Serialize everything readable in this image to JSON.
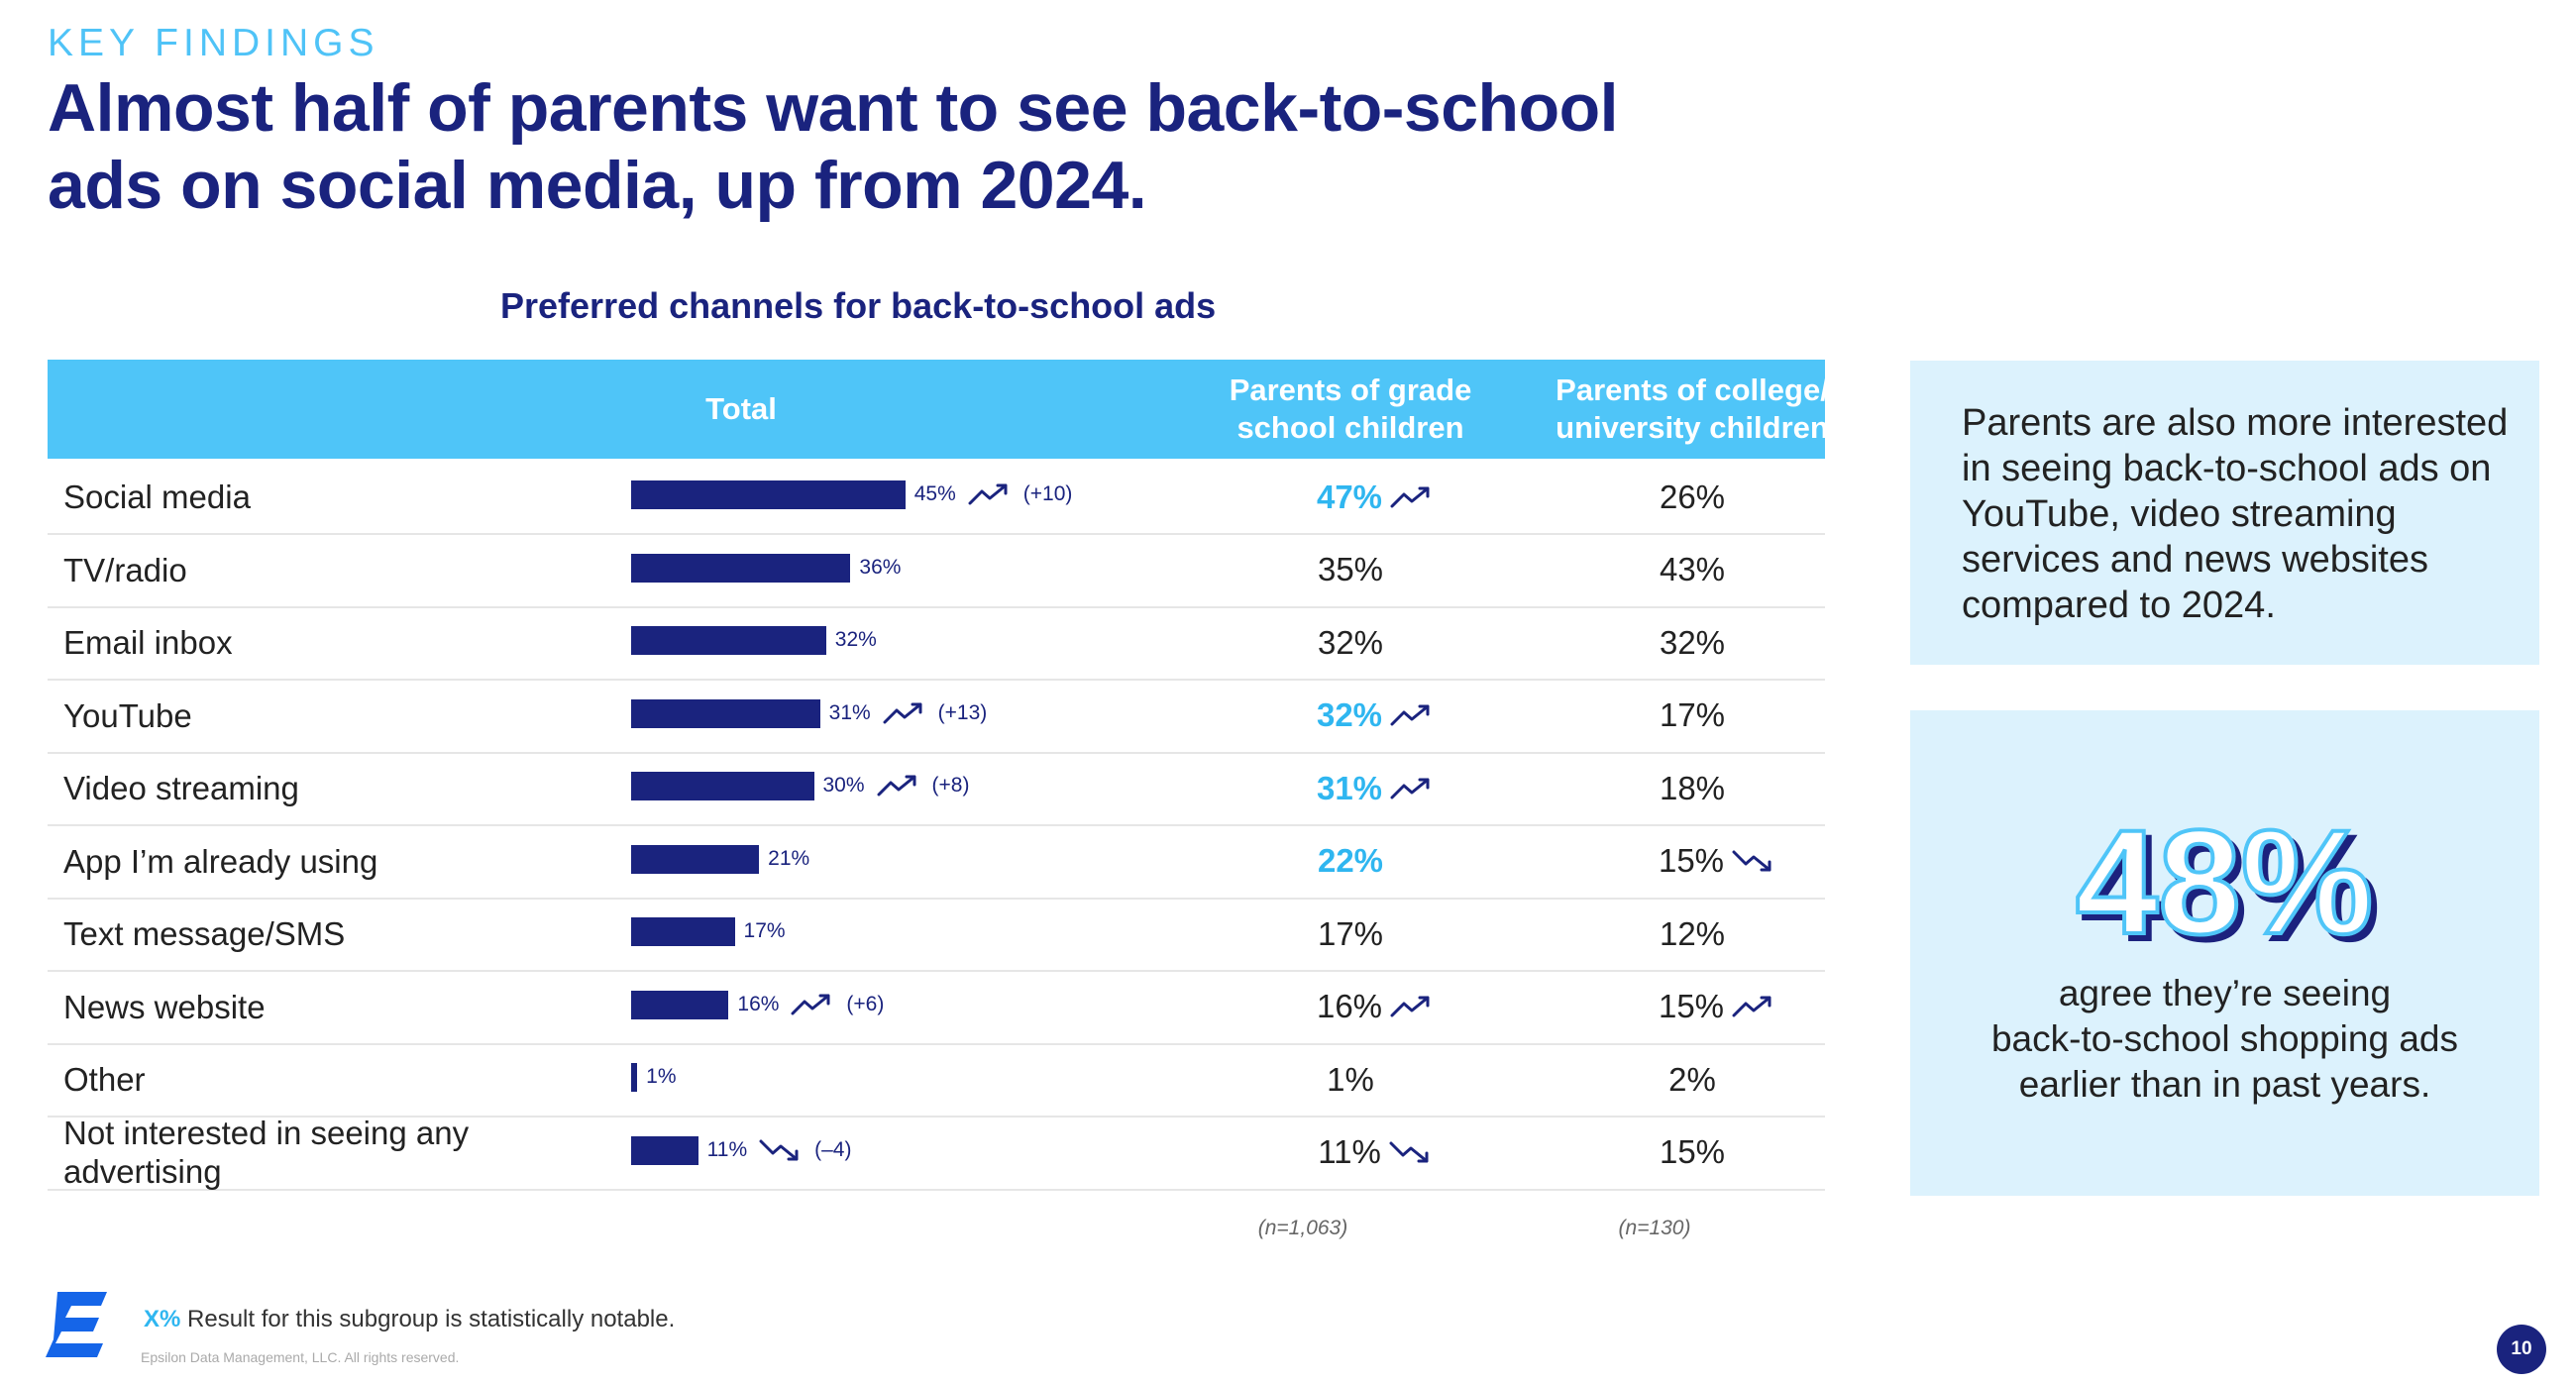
{
  "header": {
    "kicker": "KEY FINDINGS",
    "headline_line1": "Almost half of parents want to see back-to-school",
    "headline_line2": "ads on social media, up from 2024."
  },
  "colors": {
    "navy": "#1a237e",
    "header_blue": "#4fc5f8",
    "notable_blue": "#2fb6f0",
    "panel_bg": "#dcf2fd"
  },
  "chart_data": {
    "type": "bar",
    "orientation": "horizontal",
    "title": "Preferred channels for back-to-school ads",
    "columns": [
      "Total",
      "Parents of grade school children",
      "Parents of college/ university children"
    ],
    "column_header_lines": {
      "total": "Total",
      "grade_1": "Parents of grade",
      "grade_2": "school children",
      "college_1": "Parents of college/",
      "college_2": "university children"
    },
    "xlim": [
      0,
      100
    ],
    "categories": [
      "Social media",
      "TV/radio",
      "Email inbox",
      "YouTube",
      "Video streaming",
      "App I’m already using",
      "Text message/SMS",
      "News website",
      "Other",
      "Not interested in seeing any advertising"
    ],
    "rows": [
      {
        "label": "Social media",
        "total": 45,
        "total_text": "45%",
        "total_trend": "up",
        "total_change": "(+10)",
        "grade_text": "47%",
        "grade_notable": true,
        "grade_trend": "up",
        "college_text": "26%",
        "college_trend": ""
      },
      {
        "label": "TV/radio",
        "total": 36,
        "total_text": "36%",
        "total_trend": "",
        "total_change": "",
        "grade_text": "35%",
        "grade_notable": false,
        "grade_trend": "",
        "college_text": "43%",
        "college_trend": ""
      },
      {
        "label": "Email inbox",
        "total": 32,
        "total_text": "32%",
        "total_trend": "",
        "total_change": "",
        "grade_text": "32%",
        "grade_notable": false,
        "grade_trend": "",
        "college_text": "32%",
        "college_trend": ""
      },
      {
        "label": "YouTube",
        "total": 31,
        "total_text": "31%",
        "total_trend": "up",
        "total_change": "(+13)",
        "grade_text": "32%",
        "grade_notable": true,
        "grade_trend": "up",
        "college_text": "17%",
        "college_trend": ""
      },
      {
        "label": "Video streaming",
        "total": 30,
        "total_text": "30%",
        "total_trend": "up",
        "total_change": "(+8)",
        "grade_text": "31%",
        "grade_notable": true,
        "grade_trend": "up",
        "college_text": "18%",
        "college_trend": ""
      },
      {
        "label": "App I’m already using",
        "total": 21,
        "total_text": "21%",
        "total_trend": "",
        "total_change": "",
        "grade_text": "22%",
        "grade_notable": true,
        "grade_trend": "",
        "college_text": "15%",
        "college_trend": "down"
      },
      {
        "label": "Text message/SMS",
        "total": 17,
        "total_text": "17%",
        "total_trend": "",
        "total_change": "",
        "grade_text": "17%",
        "grade_notable": false,
        "grade_trend": "",
        "college_text": "12%",
        "college_trend": ""
      },
      {
        "label": "News website",
        "total": 16,
        "total_text": "16%",
        "total_trend": "up",
        "total_change": "(+6)",
        "grade_text": "16%",
        "grade_notable": false,
        "grade_trend": "up",
        "college_text": "15%",
        "college_trend": "up"
      },
      {
        "label": "Other",
        "total": 1,
        "total_text": "1%",
        "total_trend": "",
        "total_change": "",
        "grade_text": "1%",
        "grade_notable": false,
        "grade_trend": "",
        "college_text": "2%",
        "college_trend": ""
      },
      {
        "label": "Not interested in seeing any advertising",
        "total": 11,
        "total_text": "11%",
        "total_trend": "down",
        "total_change": "(–4)",
        "grade_text": "11%",
        "grade_notable": false,
        "grade_trend": "down",
        "college_text": "15%",
        "college_trend": ""
      }
    ],
    "sample_sizes": {
      "grade": "(n=1,063)",
      "college": "(n=130)"
    }
  },
  "sidebar": {
    "panel1_text": "Parents are also more interested in seeing back-to-school ads on YouTube, video streaming services and news websites compared to 2024.",
    "stat_value": "48%",
    "stat_caption_1": "agree they’re seeing",
    "stat_caption_2": "back-to-school shopping ads",
    "stat_caption_3": "earlier than in past years."
  },
  "footer": {
    "legend_swatch": "X%",
    "legend_text": " Result for this subgroup is statistically notable.",
    "copyright": "Epsilon Data Management, LLC. All rights reserved.",
    "page_number": "10"
  }
}
